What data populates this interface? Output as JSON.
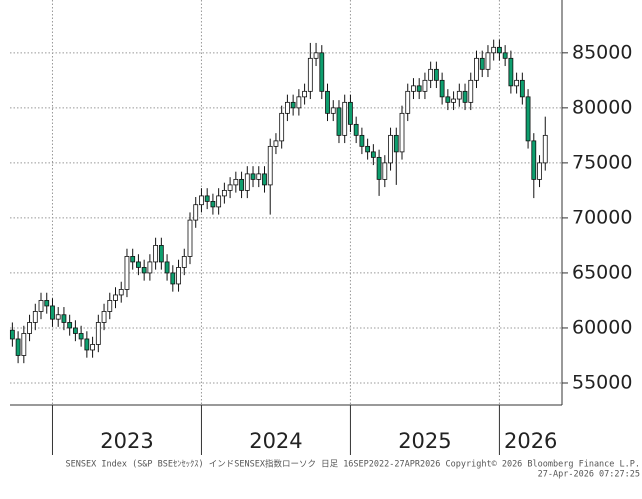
{
  "chart_data": {
    "type": "candlestick",
    "footer": [
      "SENSEX Index (S&P BSEｾﾝｾｯｸｽ) インドSENSEX指数ローソク 日足 16SEP2022-27APR2026  Copyright© 2026 Bloomberg Finance L.P.",
      "27-Apr-2026 07:27:25"
    ],
    "up_color": "#ffffff",
    "down_color": "#0e9e6e",
    "grid": true,
    "ylim": [
      53000,
      89800
    ],
    "yticks": [
      55000,
      60000,
      65000,
      70000,
      75000,
      80000,
      85000
    ],
    "xticks": [
      {
        "value": 7.5,
        "label": "2023"
      },
      {
        "value": 33.5,
        "label": "2024"
      },
      {
        "value": 59.5,
        "label": "2025"
      },
      {
        "value": 85.5,
        "label": "2026"
      }
    ],
    "open": [
      59800,
      59000,
      57500,
      59500,
      60500,
      61500,
      62500,
      62000,
      60800,
      61200,
      60500,
      60000,
      59500,
      59000,
      58000,
      58500,
      60500,
      61500,
      62500,
      63000,
      63500,
      66500,
      66000,
      65500,
      65000,
      66000,
      67500,
      66000,
      65000,
      64000,
      65500,
      66500,
      69800,
      71200,
      72000,
      71500,
      71000,
      72000,
      72500,
      73000,
      73500,
      72500,
      74000,
      73500,
      74000,
      73000,
      76500,
      77000,
      79500,
      80500,
      80000,
      81000,
      81500,
      84500,
      85000,
      81500,
      79500,
      80000,
      77500,
      80500,
      78500,
      77500,
      76500,
      76000,
      75500,
      73500,
      75000,
      77500,
      76000,
      79500,
      81500,
      82000,
      81500,
      82500,
      83500,
      82500,
      81000,
      80500,
      80800,
      81500,
      80500,
      82500,
      84500,
      83500,
      85000,
      85500,
      85000,
      84500,
      82000,
      82500,
      81000,
      77000,
      73500,
      75000
    ],
    "high": [
      60500,
      59700,
      60200,
      61200,
      62200,
      63200,
      63200,
      62700,
      61900,
      61900,
      61200,
      60700,
      60200,
      59700,
      59200,
      61200,
      62200,
      63200,
      63700,
      64200,
      67200,
      67200,
      66700,
      66200,
      66700,
      68200,
      68200,
      66700,
      65700,
      66200,
      67200,
      70500,
      71900,
      72700,
      72700,
      72200,
      72700,
      73200,
      73700,
      74200,
      74200,
      74700,
      74700,
      74700,
      74700,
      77200,
      77700,
      80200,
      81200,
      81200,
      81700,
      82200,
      85900,
      85900,
      85700,
      82200,
      80700,
      80700,
      81200,
      81200,
      79200,
      78200,
      77200,
      76700,
      76200,
      75700,
      78200,
      78200,
      80200,
      82200,
      82700,
      82700,
      83200,
      84200,
      84200,
      83200,
      81700,
      81500,
      82200,
      82200,
      83200,
      85200,
      85200,
      85700,
      86200,
      86200,
      85700,
      85200,
      83200,
      83200,
      81700,
      77700,
      75700,
      79200
    ],
    "low": [
      58300,
      56800,
      56800,
      58800,
      59800,
      60800,
      61300,
      60100,
      60100,
      59800,
      59300,
      58800,
      58300,
      57300,
      57300,
      57800,
      59800,
      60800,
      61800,
      62300,
      62800,
      65300,
      64800,
      64300,
      64300,
      65300,
      65300,
      64300,
      63300,
      63300,
      64800,
      65800,
      69100,
      70500,
      70800,
      70300,
      70300,
      71300,
      71800,
      72300,
      71800,
      71800,
      72800,
      72800,
      72300,
      70300,
      75800,
      76300,
      78800,
      79300,
      79300,
      80300,
      80800,
      83800,
      80800,
      78800,
      78800,
      76800,
      76800,
      77800,
      76800,
      75800,
      75300,
      74800,
      72000,
      72800,
      74300,
      73000,
      75300,
      78800,
      80800,
      80800,
      80800,
      81800,
      81800,
      80300,
      79800,
      79800,
      80100,
      79800,
      79800,
      81800,
      82800,
      82800,
      84300,
      84300,
      83800,
      81300,
      81300,
      80300,
      76300,
      71800,
      72800,
      74300
    ],
    "close": [
      59000,
      57500,
      59500,
      60500,
      61500,
      62500,
      62000,
      60800,
      61200,
      60500,
      60000,
      59500,
      59000,
      58000,
      58500,
      60500,
      61500,
      62500,
      63000,
      63500,
      66500,
      66000,
      65500,
      65000,
      66000,
      67500,
      66000,
      65000,
      64000,
      65500,
      66500,
      69800,
      71200,
      72000,
      71500,
      71000,
      72000,
      72500,
      73000,
      73500,
      72500,
      74000,
      73500,
      74000,
      73000,
      76500,
      77000,
      79500,
      80500,
      80000,
      81000,
      81500,
      84500,
      85000,
      81500,
      79500,
      80000,
      77500,
      80500,
      78500,
      77500,
      76500,
      76000,
      75500,
      73500,
      75000,
      77500,
      76000,
      79500,
      81500,
      82000,
      81500,
      82500,
      83500,
      82500,
      81000,
      80500,
      80800,
      81500,
      80500,
      82500,
      84500,
      83500,
      85000,
      85500,
      85000,
      84500,
      82000,
      82500,
      81000,
      77000,
      73500,
      75000,
      77500
    ]
  }
}
